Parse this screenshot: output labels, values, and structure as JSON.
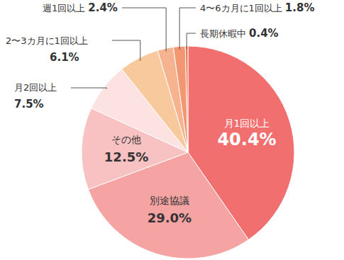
{
  "chart_data": {
    "type": "pie",
    "categories": [
      "月1回以上",
      "別途協議",
      "その他",
      "月2回以上",
      "2〜3カ月に1回以上",
      "週1回以上",
      "4〜6カ月に1回以上",
      "長期休暇中"
    ],
    "values": [
      40.4,
      29.0,
      12.5,
      7.5,
      6.1,
      2.4,
      1.8,
      0.4
    ],
    "value_labels": [
      "40.4%",
      "29.0%",
      "12.5%",
      "7.5%",
      "6.1%",
      "2.4%",
      "1.8%",
      "0.4%"
    ],
    "colors": [
      "#f26f6f",
      "#f5a3a3",
      "#f8c2c2",
      "#fde2e2",
      "#f9c99e",
      "#f5b38f",
      "#f39672",
      "#ee7b52"
    ],
    "data_labels": true
  }
}
